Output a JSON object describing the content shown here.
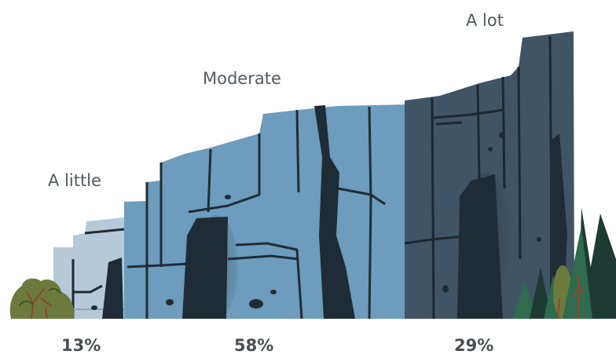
{
  "chart_data": {
    "type": "bar",
    "title": "",
    "xlabel": "",
    "ylabel": "",
    "categories": [
      "A little",
      "Moderate",
      "A lot"
    ],
    "values": [
      13,
      58,
      29
    ],
    "value_labels": [
      "13%",
      "58%",
      "29%"
    ],
    "unit": "%",
    "colors": {
      "a_little": "#b6c9d9",
      "moderate": "#6d9cbc",
      "a_lot": "#3f5566",
      "crack": "#1f2c36",
      "tree_dark": "#1d3b32",
      "tree_green": "#2e6b4f",
      "shrub": "#6c7a3d"
    }
  }
}
